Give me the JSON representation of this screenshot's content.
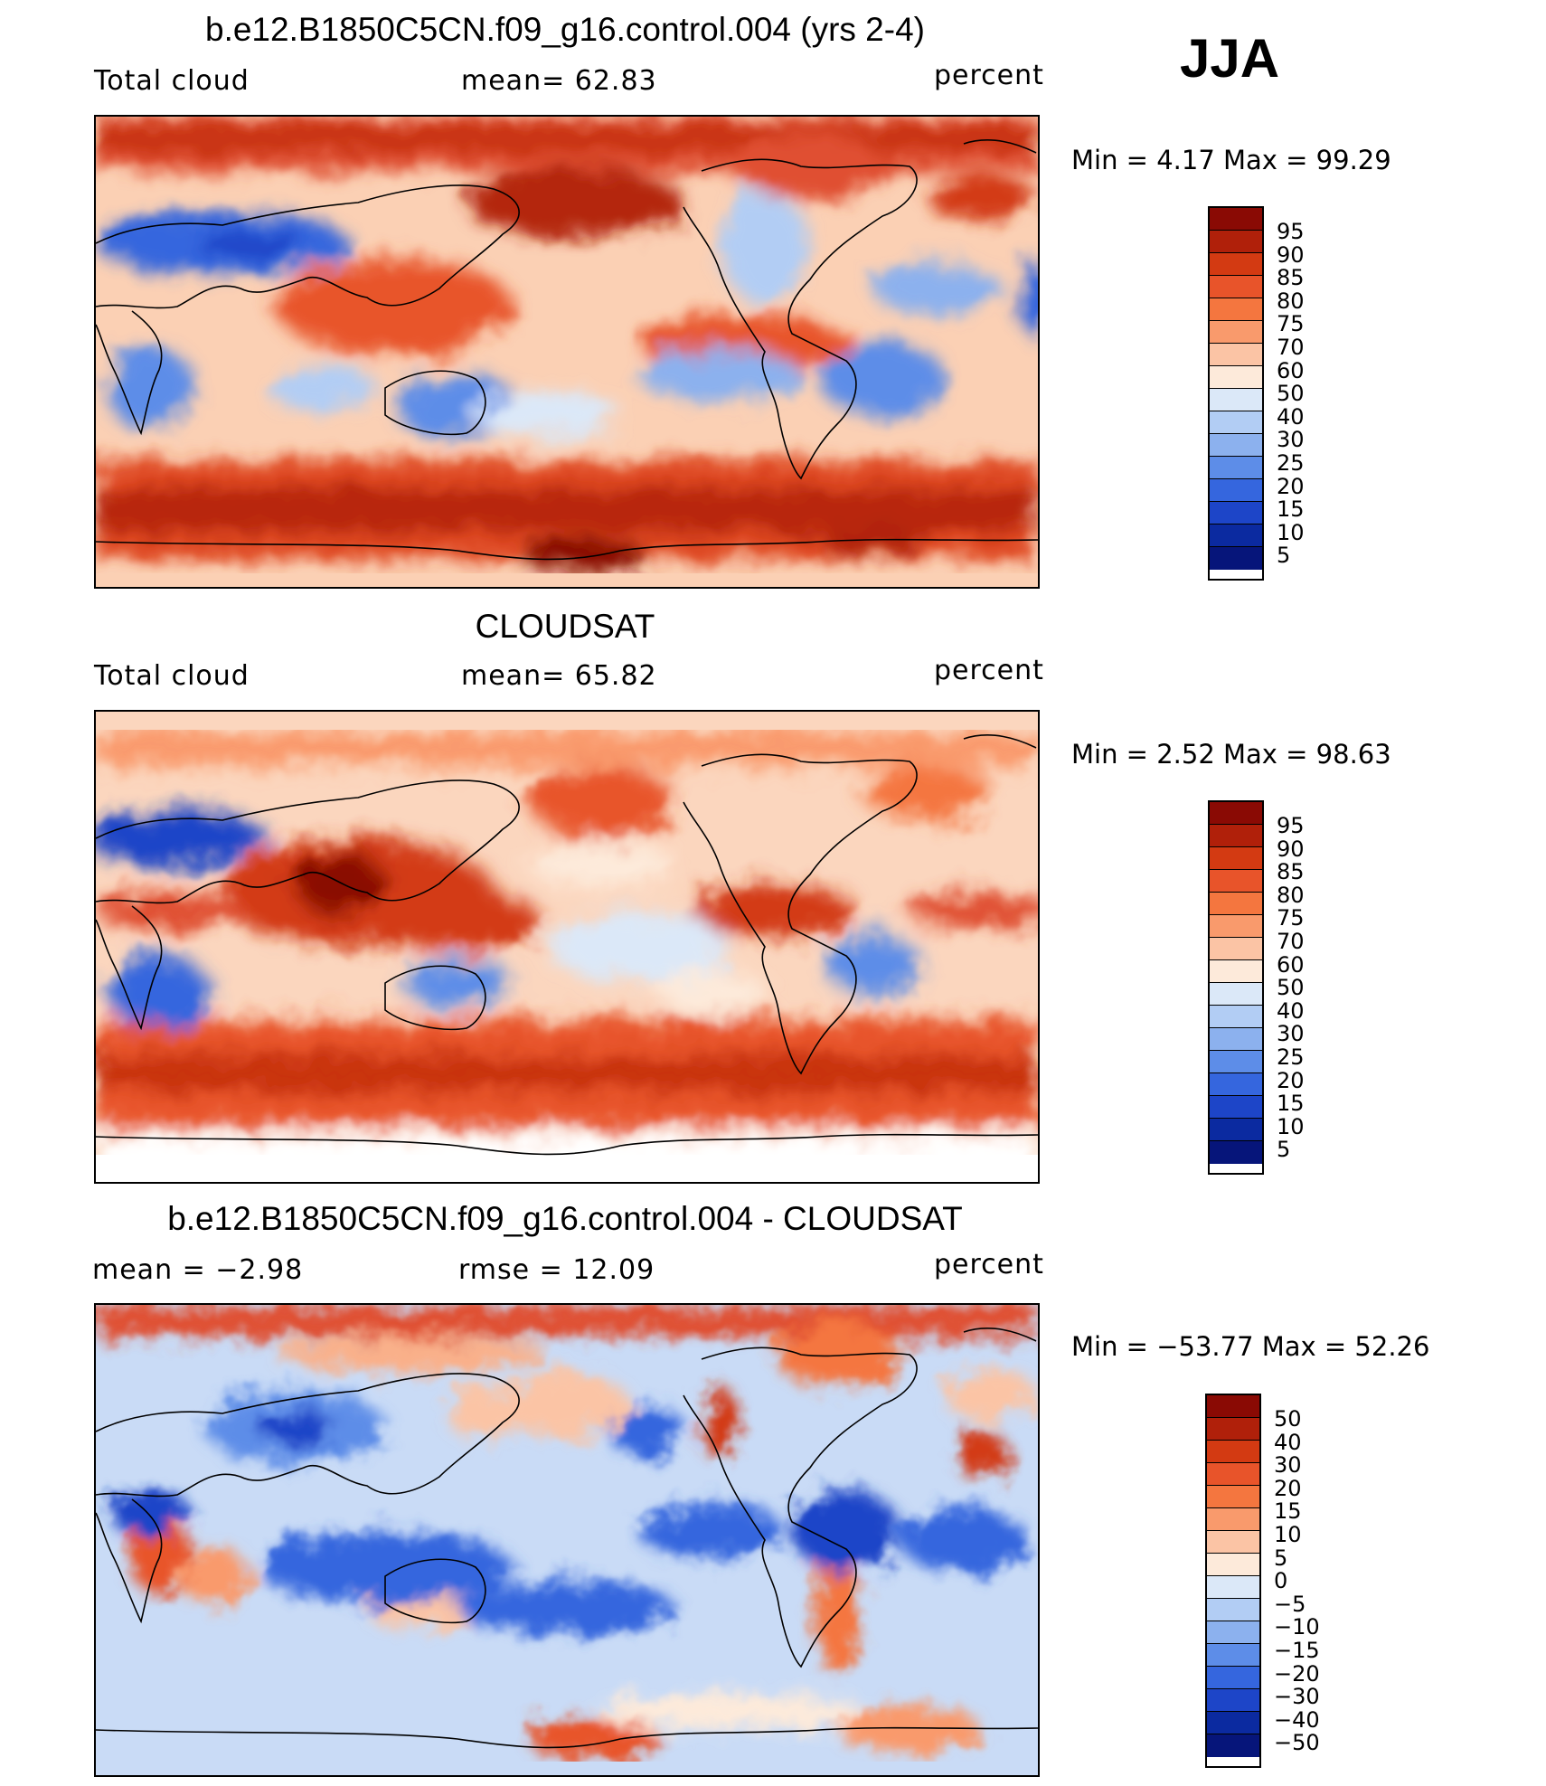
{
  "season": "JJA",
  "panels": [
    {
      "title": "b.e12.B1850C5CN.f09_g16.control.004 (yrs 2-4)",
      "left_label": "Total cloud",
      "center_label": "mean=   62.83",
      "right_label": "percent",
      "minmax": "Min  =     4.17  Max  =    99.29",
      "levels": [
        "95",
        "90",
        "85",
        "80",
        "75",
        "70",
        "60",
        "50",
        "40",
        "30",
        "25",
        "20",
        "15",
        "10",
        "5"
      ],
      "colors": [
        "#8a0a04",
        "#b0200a",
        "#d33a12",
        "#e8542a",
        "#f4763f",
        "#f99a6c",
        "#fbc4a5",
        "#fdeada",
        "#dbe8f8",
        "#b2cdf4",
        "#8cb1ee",
        "#5d8de8",
        "#3566de",
        "#1d45c8",
        "#0b2aa0",
        "#06157a"
      ]
    },
    {
      "title": "CLOUDSAT",
      "left_label": "Total cloud",
      "center_label": "mean=   65.82",
      "right_label": "percent",
      "minmax": "Min  =     2.52  Max  =    98.63",
      "levels": [
        "95",
        "90",
        "85",
        "80",
        "75",
        "70",
        "60",
        "50",
        "40",
        "30",
        "25",
        "20",
        "15",
        "10",
        "5"
      ],
      "colors": [
        "#8a0a04",
        "#b0200a",
        "#d33a12",
        "#e8542a",
        "#f4763f",
        "#f99a6c",
        "#fbc4a5",
        "#fdeada",
        "#dbe8f8",
        "#b2cdf4",
        "#8cb1ee",
        "#5d8de8",
        "#3566de",
        "#1d45c8",
        "#0b2aa0",
        "#06157a"
      ]
    },
    {
      "title": "b.e12.B1850C5CN.f09_g16.control.004 - CLOUDSAT",
      "left_label": "mean  =    −2.98",
      "center_label": "rmse  =    12.09",
      "right_label": "percent",
      "minmax": "Min  = −53.77  Max  =    52.26",
      "levels": [
        "50",
        "40",
        "30",
        "20",
        "15",
        "10",
        "5",
        "0",
        "−5",
        "−10",
        "−15",
        "−20",
        "−30",
        "−40",
        "−50"
      ],
      "colors": [
        "#8a0a04",
        "#b0200a",
        "#d33a12",
        "#e8542a",
        "#f4763f",
        "#f99a6c",
        "#fbc4a5",
        "#fdeada",
        "#dbe8f8",
        "#b2cdf4",
        "#8cb1ee",
        "#5d8de8",
        "#3566de",
        "#1d45c8",
        "#0b2aa0",
        "#06157a"
      ]
    }
  ]
}
